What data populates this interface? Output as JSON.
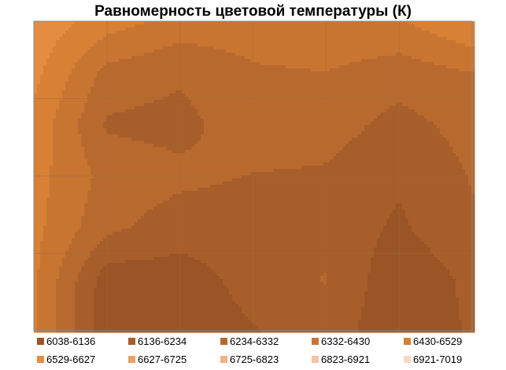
{
  "chart_data": {
    "type": "contour",
    "title": "Равномерность цветовой температуры (К)",
    "grid": true,
    "x_divisions": 6,
    "y_divisions": 4,
    "legend_position": "bottom",
    "levels": [
      {
        "label": "6038-6136",
        "color": "#9a5425"
      },
      {
        "label": "6136-6234",
        "color": "#a85e2a"
      },
      {
        "label": "6234-6332",
        "color": "#b86a2e"
      },
      {
        "label": "6332-6430",
        "color": "#c97532"
      },
      {
        "label": "6430-6529",
        "color": "#d88034"
      },
      {
        "label": "6529-6627",
        "color": "#e48d40"
      },
      {
        "label": "6627-6725",
        "color": "#eba066"
      },
      {
        "label": "6725-6823",
        "color": "#efb386"
      },
      {
        "label": "6823-6921",
        "color": "#f2c6a6"
      },
      {
        "label": "6921-7019",
        "color": "#f6d8c4"
      }
    ],
    "z": [
      [
        6600,
        6480,
        6390,
        6380,
        6410,
        6420,
        6530
      ],
      [
        6560,
        6300,
        6250,
        6320,
        6330,
        6280,
        6330
      ],
      [
        6500,
        6220,
        6200,
        6300,
        6280,
        6200,
        6270
      ],
      [
        6470,
        6300,
        6260,
        6230,
        6220,
        6150,
        6240
      ],
      [
        6460,
        6260,
        6180,
        6180,
        6200,
        6120,
        6220
      ],
      [
        6450,
        6080,
        6090,
        6170,
        6240,
        6060,
        6160
      ],
      [
        6440,
        6060,
        6080,
        6130,
        6200,
        6050,
        6150
      ]
    ]
  }
}
